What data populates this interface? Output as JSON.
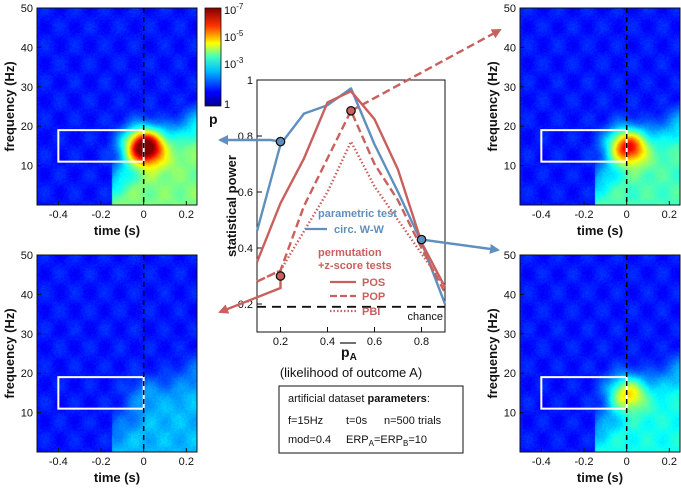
{
  "colors": {
    "parametric": "#5f8fbf",
    "permutation": "#c9605d",
    "dark": "#111111",
    "bg_blue": "#0a2c8c"
  },
  "colorbar": {
    "label": "p",
    "ticks": [
      {
        "base": "10",
        "exp": "-7"
      },
      {
        "base": "10",
        "exp": "-5"
      },
      {
        "base": "10",
        "exp": "-3"
      },
      {
        "base": "1",
        "exp": ""
      }
    ]
  },
  "tf_panels": [
    {
      "id": "top-left",
      "blob_strength": 1.0,
      "xlabel": "time (s)",
      "ylabel": "frequency (Hz)",
      "xticks": [
        "-0.4",
        "-0.2",
        "0",
        "0.2"
      ],
      "yticks": [
        "50",
        "40",
        "30",
        "20",
        "10"
      ],
      "xlim": [
        -0.5,
        0.25
      ],
      "ylim": [
        0,
        50
      ],
      "roi": {
        "t": [
          -0.4,
          0.0
        ],
        "f": [
          11,
          19
        ]
      }
    },
    {
      "id": "top-right",
      "blob_strength": 0.75,
      "xlabel": "time (s)",
      "ylabel": "frequency (Hz)",
      "xticks": [
        "-0.4",
        "-0.2",
        "0",
        "0.2"
      ],
      "yticks": [
        "50",
        "40",
        "30",
        "20",
        "10"
      ],
      "xlim": [
        -0.5,
        0.25
      ],
      "ylim": [
        0,
        50
      ],
      "roi": {
        "t": [
          -0.4,
          0.0
        ],
        "f": [
          11,
          19
        ]
      }
    },
    {
      "id": "bottom-left",
      "blob_strength": 0.1,
      "xlabel": "time (s)",
      "ylabel": "frequency (Hz)",
      "xticks": [
        "-0.4",
        "-0.2",
        "0",
        "0.2"
      ],
      "yticks": [
        "50",
        "40",
        "30",
        "20",
        "10"
      ],
      "xlim": [
        -0.5,
        0.25
      ],
      "ylim": [
        0,
        50
      ],
      "roi": {
        "t": [
          -0.4,
          0.0
        ],
        "f": [
          11,
          19
        ]
      }
    },
    {
      "id": "bottom-right",
      "blob_strength": 0.5,
      "xlabel": "time (s)",
      "ylabel": "frequency (Hz)",
      "xticks": [
        "-0.4",
        "-0.2",
        "0",
        "0.2"
      ],
      "yticks": [
        "50",
        "40",
        "30",
        "20",
        "10"
      ],
      "xlim": [
        -0.5,
        0.25
      ],
      "ylim": [
        0,
        50
      ],
      "roi": {
        "t": [
          -0.4,
          0.0
        ],
        "f": [
          11,
          19
        ]
      }
    }
  ],
  "chart_data": {
    "type": "line",
    "title": "",
    "xlabel_main": "p",
    "xlabel_sub": "A",
    "xlabel_note": "(likelihood of outcome A)",
    "ylabel": "statistical power",
    "xlim": [
      0.1,
      0.9
    ],
    "ylim": [
      0.1,
      1.0
    ],
    "xticks": [
      0.2,
      0.4,
      0.6,
      0.8
    ],
    "xtick_labels": [
      "0.2",
      "0.4",
      "0.6",
      "0.8"
    ],
    "yticks": [
      0.2,
      0.4,
      0.6,
      0.8,
      1.0
    ],
    "ytick_labels": [
      "0.2",
      "0.4",
      "0.6",
      "0.8",
      "1"
    ],
    "chance_level": 0.19,
    "chance_label": "chance",
    "series": [
      {
        "name": "circ. W-W",
        "group": "parametric",
        "style": "solid",
        "x": [
          0.1,
          0.2,
          0.3,
          0.4,
          0.5,
          0.6,
          0.7,
          0.8,
          0.9
        ],
        "y": [
          0.46,
          0.77,
          0.88,
          0.91,
          0.97,
          0.77,
          0.6,
          0.42,
          0.2
        ]
      },
      {
        "name": "POS",
        "group": "permutation",
        "style": "solid",
        "x": [
          0.1,
          0.2,
          0.3,
          0.4,
          0.5,
          0.6,
          0.7,
          0.8,
          0.9
        ],
        "y": [
          0.35,
          0.56,
          0.72,
          0.92,
          0.96,
          0.86,
          0.68,
          0.42,
          0.26
        ]
      },
      {
        "name": "POP",
        "group": "permutation",
        "style": "dashed",
        "x": [
          0.1,
          0.2,
          0.3,
          0.4,
          0.5,
          0.6,
          0.7,
          0.8,
          0.9
        ],
        "y": [
          0.28,
          0.32,
          0.55,
          0.72,
          0.89,
          0.7,
          0.57,
          0.4,
          0.24
        ]
      },
      {
        "name": "PBI",
        "group": "permutation",
        "style": "dotted",
        "x": [
          0.1,
          0.2,
          0.3,
          0.4,
          0.5,
          0.6,
          0.7,
          0.8,
          0.9
        ],
        "y": [
          0.28,
          0.32,
          0.46,
          0.6,
          0.78,
          0.62,
          0.5,
          0.38,
          0.26
        ]
      }
    ],
    "markers": [
      {
        "x": 0.2,
        "y": 0.78,
        "group": "parametric",
        "points_to": "top-left"
      },
      {
        "x": 0.8,
        "y": 0.43,
        "group": "parametric",
        "points_to": "bottom-right"
      },
      {
        "x": 0.5,
        "y": 0.89,
        "group": "permutation",
        "points_to": "top-right"
      },
      {
        "x": 0.2,
        "y": 0.3,
        "group": "permutation",
        "points_to": "bottom-left"
      }
    ],
    "legend": {
      "param_title": "parametric test",
      "param_item": "circ. W-W",
      "perm_title_1": "permutation",
      "perm_title_2": "+z-score tests",
      "items": [
        "POS",
        "POP",
        "PBI"
      ]
    }
  },
  "params_box": {
    "title_plain": "artificial dataset ",
    "title_bold": "parameters",
    "f": "f=15Hz",
    "t": "t=0s",
    "n": "n=500 trials",
    "mod": "mod=0.4",
    "erp_a": "ERP",
    "erp_a_sub": "A",
    "erp_b": "=ERP",
    "erp_b_sub": "B",
    "erp_val": "=10"
  }
}
